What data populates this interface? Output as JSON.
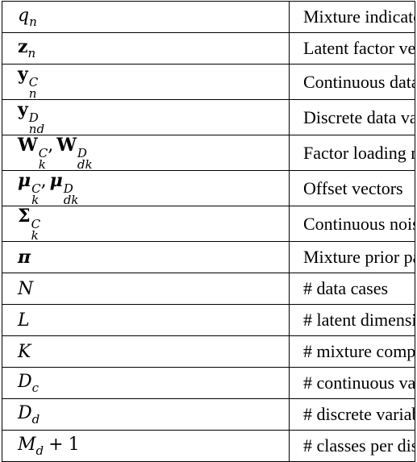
{
  "rows": [
    {
      "desc": "Mixture indicator variable"
    },
    {
      "desc": "Latent factor vector"
    },
    {
      "desc": "Continuous data vector"
    },
    {
      "desc": "Discrete data variable"
    },
    {
      "desc": "Factor loading matrices"
    },
    {
      "desc": "Offset vectors"
    },
    {
      "desc": "Continuous noise covariance"
    },
    {
      "desc": "Mixture prior parameter"
    },
    {
      "desc": "# data cases"
    },
    {
      "desc": "# latent dimensions"
    },
    {
      "desc": "# mixture components"
    },
    {
      "desc": "# continuous variables"
    },
    {
      "desc": "# discrete variables"
    },
    {
      "desc": "# classes per discrete variable"
    }
  ],
  "symbols": {
    "q": "q",
    "n": "n",
    "z": "z",
    "y": "y",
    "C": "C",
    "D": "D",
    "nd": "nd",
    "W": "W",
    "k": "k",
    "dk": "dk",
    "mu": "μ",
    "Sigma": "Σ",
    "pi": "π",
    "N": "N",
    "L": "L",
    "K": "K",
    "Dc_main": "D",
    "c": "c",
    "Dd_main": "D",
    "d": "d",
    "M": "M",
    "plus": "+",
    "one": "1",
    "comma": ","
  }
}
